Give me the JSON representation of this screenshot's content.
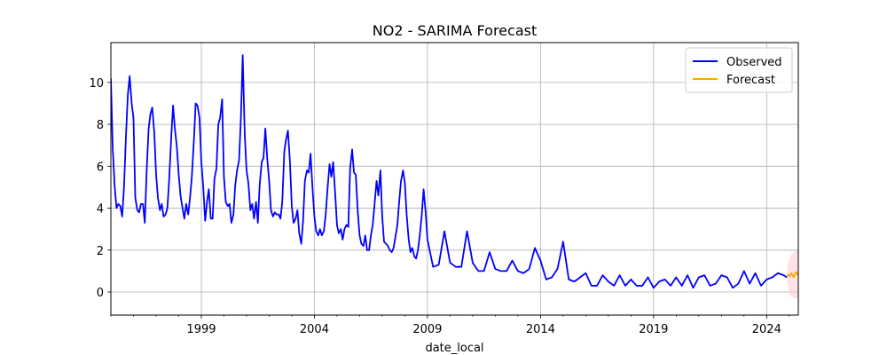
{
  "chart_data": {
    "type": "line",
    "title": "NO2 - SARIMA Forecast",
    "xlabel": "date_local",
    "ylabel": "",
    "xlim": [
      1995.0,
      2025.4
    ],
    "ylim": [
      -1.1,
      11.9
    ],
    "x_ticks": [
      1999,
      2004,
      2009,
      2014,
      2019,
      2024
    ],
    "y_ticks": [
      0,
      2,
      4,
      6,
      8,
      10
    ],
    "grid": true,
    "legend_position": "top-right",
    "series": [
      {
        "name": "Observed",
        "color": "#0000ff",
        "x": [
          1995.0,
          1995.08,
          1995.17,
          1995.25,
          1995.33,
          1995.42,
          1995.5,
          1995.58,
          1995.67,
          1995.75,
          1995.83,
          1995.92,
          1996.0,
          1996.08,
          1996.17,
          1996.25,
          1996.33,
          1996.42,
          1996.5,
          1996.58,
          1996.67,
          1996.75,
          1996.83,
          1996.92,
          1997.0,
          1997.08,
          1997.17,
          1997.25,
          1997.33,
          1997.42,
          1997.5,
          1997.58,
          1997.67,
          1997.75,
          1997.83,
          1997.92,
          1998.0,
          1998.08,
          1998.17,
          1998.25,
          1998.33,
          1998.42,
          1998.5,
          1998.58,
          1998.67,
          1998.75,
          1998.83,
          1998.92,
          1999.0,
          1999.08,
          1999.17,
          1999.25,
          1999.33,
          1999.42,
          1999.5,
          1999.58,
          1999.67,
          1999.75,
          1999.83,
          1999.92,
          2000.0,
          2000.08,
          2000.17,
          2000.25,
          2000.33,
          2000.42,
          2000.5,
          2000.58,
          2000.67,
          2000.75,
          2000.83,
          2000.92,
          2001.0,
          2001.08,
          2001.17,
          2001.25,
          2001.33,
          2001.42,
          2001.5,
          2001.58,
          2001.67,
          2001.75,
          2001.83,
          2001.92,
          2002.0,
          2002.08,
          2002.17,
          2002.25,
          2002.33,
          2002.42,
          2002.5,
          2002.58,
          2002.67,
          2002.75,
          2002.83,
          2002.92,
          2003.0,
          2003.08,
          2003.17,
          2003.25,
          2003.33,
          2003.42,
          2003.5,
          2003.58,
          2003.67,
          2003.75,
          2003.83,
          2003.92,
          2004.0,
          2004.08,
          2004.17,
          2004.25,
          2004.33,
          2004.42,
          2004.5,
          2004.58,
          2004.67,
          2004.75,
          2004.83,
          2004.92,
          2005.0,
          2005.08,
          2005.17,
          2005.25,
          2005.33,
          2005.42,
          2005.5,
          2005.58,
          2005.67,
          2005.75,
          2005.83,
          2005.92,
          2006.0,
          2006.08,
          2006.17,
          2006.25,
          2006.33,
          2006.42,
          2006.5,
          2006.58,
          2006.67,
          2006.75,
          2006.83,
          2006.92,
          2007.0,
          2007.08,
          2007.17,
          2007.25,
          2007.33,
          2007.42,
          2007.5,
          2007.58,
          2007.67,
          2007.75,
          2007.83,
          2007.92,
          2008.0,
          2008.08,
          2008.17,
          2008.25,
          2008.33,
          2008.42,
          2008.5,
          2008.58,
          2008.67,
          2008.75,
          2008.83,
          2008.92,
          2009.0,
          2009.25,
          2009.5,
          2009.75,
          2010.0,
          2010.25,
          2010.5,
          2010.75,
          2011.0,
          2011.25,
          2011.5,
          2011.75,
          2012.0,
          2012.25,
          2012.5,
          2012.75,
          2013.0,
          2013.25,
          2013.5,
          2013.75,
          2014.0,
          2014.25,
          2014.5,
          2014.75,
          2015.0,
          2015.25,
          2015.5,
          2015.75,
          2016.0,
          2016.25,
          2016.5,
          2016.75,
          2017.0,
          2017.25,
          2017.5,
          2017.75,
          2018.0,
          2018.25,
          2018.5,
          2018.75,
          2019.0,
          2019.25,
          2019.5,
          2019.75,
          2020.0,
          2020.25,
          2020.5,
          2020.75,
          2021.0,
          2021.25,
          2021.5,
          2021.75,
          2022.0,
          2022.25,
          2022.5,
          2022.75,
          2023.0,
          2023.25,
          2023.5,
          2023.75,
          2024.0,
          2024.25,
          2024.5,
          2024.75,
          2024.9
        ],
        "y": [
          10.2,
          6.9,
          5.0,
          4.0,
          4.2,
          4.1,
          3.6,
          5.0,
          7.5,
          9.4,
          10.3,
          9.0,
          8.3,
          4.5,
          3.9,
          3.8,
          4.2,
          4.2,
          3.3,
          5.7,
          7.8,
          8.5,
          8.8,
          7.6,
          5.6,
          4.5,
          3.9,
          4.2,
          3.6,
          3.7,
          4.0,
          5.4,
          7.4,
          8.9,
          7.8,
          6.9,
          5.6,
          4.6,
          4.0,
          3.5,
          4.2,
          3.7,
          4.5,
          5.5,
          7.2,
          9.0,
          8.9,
          8.3,
          6.2,
          5.1,
          3.4,
          4.3,
          4.9,
          3.5,
          3.5,
          5.4,
          5.9,
          8.0,
          8.3,
          9.2,
          5.5,
          4.3,
          4.1,
          4.2,
          3.3,
          3.7,
          5.1,
          5.8,
          6.3,
          8.3,
          11.3,
          7.5,
          5.8,
          5.2,
          3.9,
          4.2,
          3.5,
          4.3,
          3.3,
          5.1,
          6.2,
          6.4,
          7.8,
          6.3,
          5.3,
          3.9,
          3.6,
          3.8,
          3.7,
          3.7,
          3.5,
          4.3,
          6.7,
          7.3,
          7.7,
          6.2,
          4.1,
          3.3,
          3.5,
          3.9,
          2.8,
          2.3,
          3.4,
          5.3,
          5.8,
          5.7,
          6.6,
          4.9,
          3.6,
          2.9,
          2.7,
          3.0,
          2.7,
          2.9,
          3.7,
          4.9,
          6.1,
          5.5,
          6.2,
          4.7,
          3.2,
          2.8,
          3.0,
          2.5,
          3.0,
          3.2,
          3.1,
          5.9,
          6.8,
          5.7,
          5.6,
          3.8,
          2.7,
          2.3,
          2.2,
          2.7,
          2.0,
          2.0,
          2.7,
          3.2,
          4.3,
          5.3,
          4.6,
          5.8,
          3.6,
          2.4,
          2.3,
          2.2,
          2.0,
          1.9,
          2.1,
          2.6,
          3.2,
          4.3,
          5.3,
          5.8,
          5.2,
          3.7,
          2.5,
          1.9,
          2.1,
          1.7,
          1.6,
          2.0,
          2.8,
          3.7,
          4.9,
          3.8,
          2.5,
          1.2,
          1.3,
          2.9,
          1.4,
          1.2,
          1.2,
          2.9,
          1.4,
          1.0,
          1.0,
          1.9,
          1.1,
          1.0,
          1.0,
          1.5,
          1.0,
          0.9,
          1.1,
          2.1,
          1.5,
          0.6,
          0.7,
          1.1,
          2.4,
          0.6,
          0.5,
          0.7,
          0.9,
          0.3,
          0.3,
          0.8,
          0.5,
          0.3,
          0.8,
          0.3,
          0.6,
          0.3,
          0.3,
          0.7,
          0.2,
          0.5,
          0.6,
          0.3,
          0.7,
          0.3,
          0.8,
          0.2,
          0.7,
          0.8,
          0.3,
          0.4,
          0.8,
          0.7,
          0.2,
          0.4,
          1.0,
          0.4,
          0.9,
          0.3,
          0.6,
          0.7,
          0.9,
          0.8,
          0.7
        ]
      },
      {
        "name": "Forecast",
        "color": "#ffa500",
        "x": [
          2024.9,
          2025.0,
          2025.1,
          2025.2,
          2025.3,
          2025.4
        ],
        "y": [
          0.85,
          0.75,
          0.9,
          0.7,
          0.95,
          0.8
        ],
        "ci_lower": [
          0.5,
          -0.1,
          -0.2,
          -0.3,
          -0.3,
          -0.3
        ],
        "ci_upper": [
          1.2,
          1.6,
          1.8,
          1.9,
          2.0,
          2.0
        ],
        "ci_color": "#ffc0cb"
      }
    ]
  }
}
